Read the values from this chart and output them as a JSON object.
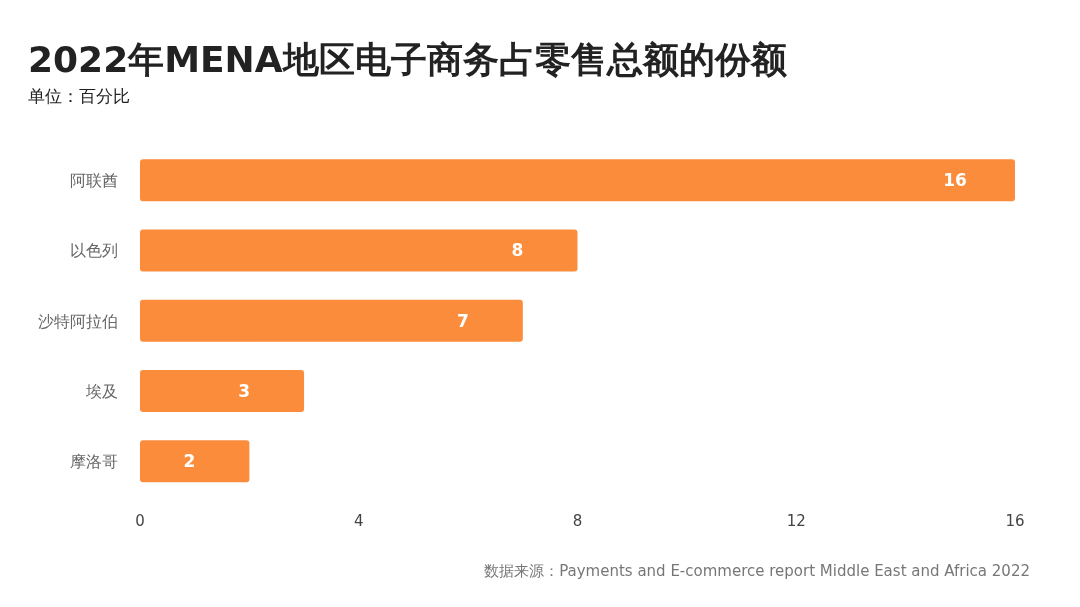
{
  "chart_data": {
    "type": "bar",
    "orientation": "horizontal",
    "title": "2022年MENA地区电子商务占零售总额的份额",
    "subtitle": "单位：百分比",
    "categories": [
      "阿联酋",
      "以色列",
      "沙特阿拉伯",
      "埃及",
      "摩洛哥"
    ],
    "values": [
      16,
      8,
      7,
      3,
      2
    ],
    "color": "#fb8c3c",
    "data_labels": true,
    "xlim": [
      0,
      16
    ],
    "xticks": [
      0,
      4,
      8,
      12,
      16
    ],
    "annotations": [
      "数据来源：Payments and E-commerce report Middle East and Africa 2022"
    ]
  }
}
